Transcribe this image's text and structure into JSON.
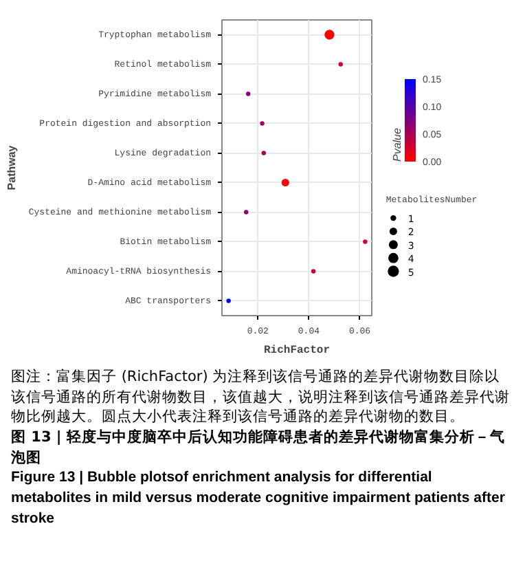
{
  "chart_data": {
    "type": "bubble",
    "xlabel": "RichFactor",
    "ylabel": "Pathway",
    "clabel": "Pvalue",
    "legend_title": "MetabolitesNumber",
    "categories": [
      "Tryptophan metabolism",
      "Retinol metabolism",
      "Pyrimidine metabolism",
      "Protein digestion and absorption",
      "Lysine degradation",
      "D-Amino acid metabolism",
      "Cysteine and methionine metabolism",
      "Biotin metabolism",
      "Aminoacyl-tRNA biosynthesis",
      "ABC transporters"
    ],
    "values": [
      0.0481,
      0.0525,
      0.0162,
      0.0217,
      0.0223,
      0.0308,
      0.0154,
      0.0621,
      0.0418,
      0.0085
    ],
    "sizes": [
      5,
      1,
      1,
      1,
      1,
      3,
      1,
      1,
      1,
      1
    ],
    "cvalues": [
      0.0,
      0.03,
      0.07,
      0.05,
      0.05,
      0.0,
      0.07,
      0.03,
      0.03,
      0.15
    ],
    "size_legend": [
      {
        "value": 1,
        "label": "1"
      },
      {
        "value": 2,
        "label": "2"
      },
      {
        "value": 3,
        "label": "3"
      },
      {
        "value": 4,
        "label": "4"
      },
      {
        "value": 5,
        "label": "5"
      }
    ],
    "orientation": "horizontal",
    "clim": [
      0,
      0.15
    ],
    "cticks": [
      {
        "value": 0,
        "label": "0.00"
      },
      {
        "value": 0.05,
        "label": "0.05"
      },
      {
        "value": 0.1,
        "label": "0.10"
      },
      {
        "value": 0.15,
        "label": "0.15"
      }
    ],
    "xlim": [
      0.0059,
      0.0647
    ],
    "xticks": [
      {
        "value": 0.02,
        "label": "0.02"
      },
      {
        "value": 0.04,
        "label": "0.04"
      },
      {
        "value": 0.06,
        "label": "0.06"
      }
    ],
    "grid": true,
    "annotations": [
      "图注：富集因子 (RichFactor) 为注释到该信号通路的差异代谢物数目除以该信号通路的所有代谢物数目，该值越大，说明注释到该信号通路差异代谢物比例越大。圆点大小代表注释到该信号通路的差异代谢物的数目。",
      "图 13 | 轻度与中度脑卒中后认知功能障碍患者的差异代谢物富集分析－气泡图",
      "Figure 13 | Bubble plotsof enrichment analysis for differential metabolites in mild versus moderate cognitive impairment patients after stroke"
    ]
  }
}
